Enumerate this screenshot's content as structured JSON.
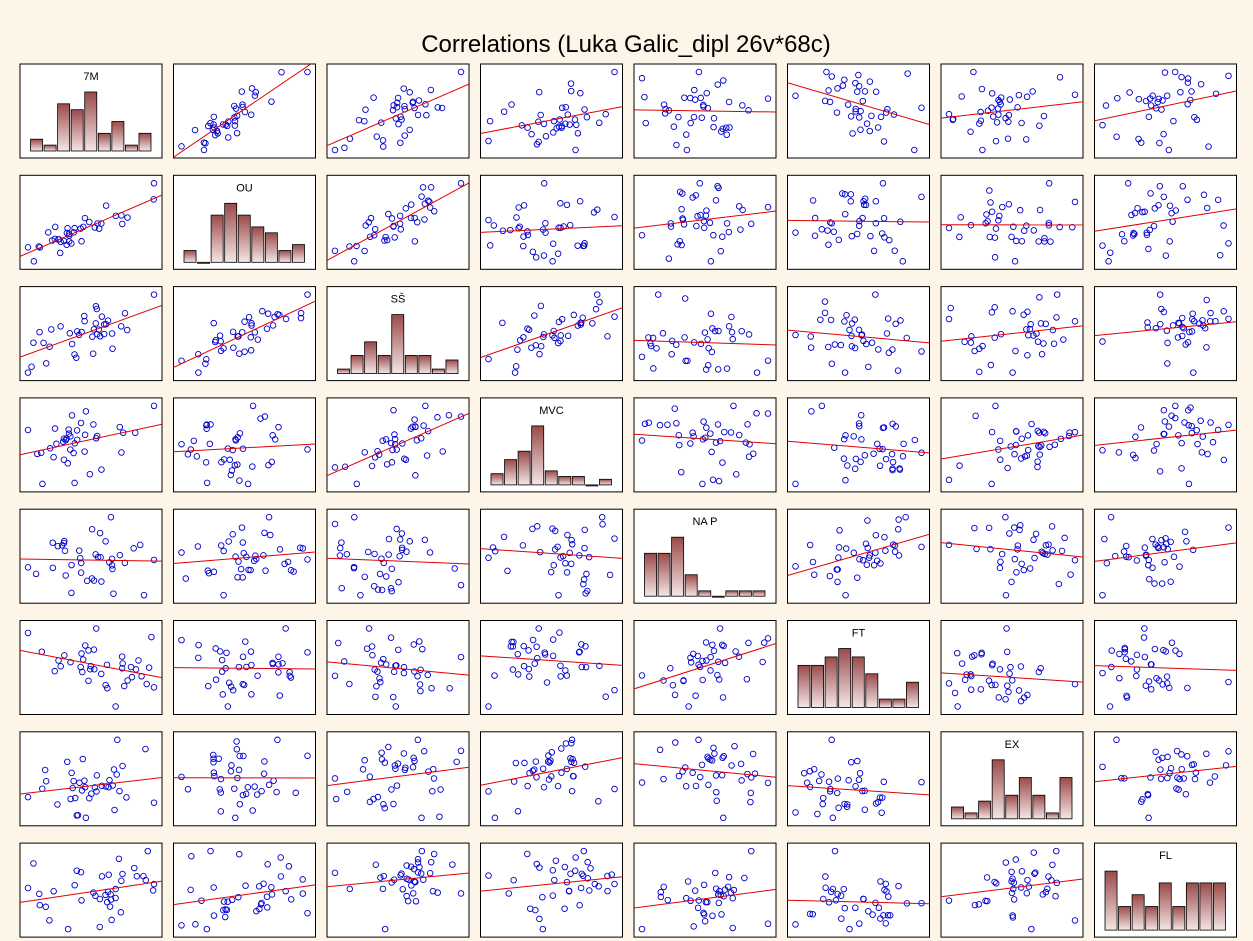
{
  "chart_data": {
    "type": "scatter",
    "title": "Correlations (Luka Galic_dipl 26v*68c)",
    "variables": [
      "7M",
      "OU",
      "SŠ",
      "MVC",
      "NA P",
      "FT",
      "EX",
      "FL"
    ],
    "grid": false,
    "legend": "none",
    "colors": {
      "background": "#fdf6e8",
      "panel": "#ffffff",
      "point": "#0000cc",
      "fit_line": "#e00000",
      "bar_dark": "#9a4a4a",
      "bar_light": "#f5e6e6",
      "frame": "#000000"
    },
    "histograms": [
      {
        "variable": "7M",
        "counts": [
          2,
          1,
          8,
          7,
          10,
          3,
          5,
          1,
          3
        ]
      },
      {
        "variable": "OU",
        "counts": [
          2,
          0,
          8,
          10,
          8,
          6,
          5,
          2,
          3
        ]
      },
      {
        "variable": "SŠ",
        "counts": [
          1,
          4,
          7,
          4,
          13,
          4,
          4,
          1,
          3
        ]
      },
      {
        "variable": "MVC",
        "counts": [
          4,
          9,
          12,
          21,
          5,
          3,
          3,
          0,
          2
        ]
      },
      {
        "variable": "NA P",
        "counts": [
          8,
          8,
          11,
          4,
          1,
          0,
          1,
          1,
          1
        ]
      },
      {
        "variable": "FT",
        "counts": [
          5,
          5,
          6,
          7,
          6,
          4,
          1,
          1,
          3
        ]
      },
      {
        "variable": "EX",
        "counts": [
          2,
          1,
          3,
          10,
          4,
          7,
          4,
          1,
          7
        ]
      },
      {
        "variable": "FL",
        "counts": [
          5,
          2,
          3,
          2,
          4,
          2,
          4,
          4,
          4
        ]
      }
    ],
    "correlations": [
      [
        1.0,
        0.85,
        0.72,
        0.28,
        -0.02,
        -0.08,
        0.06,
        0.07
      ],
      [
        0.85,
        1.0,
        0.7,
        0.3,
        -0.03,
        -0.07,
        0.1,
        0.02
      ],
      [
        0.72,
        0.7,
        1.0,
        0.35,
        -0.12,
        -0.1,
        0.07,
        0.08
      ],
      [
        0.28,
        0.3,
        0.35,
        1.0,
        -0.01,
        -0.01,
        0.2,
        0.1
      ],
      [
        -0.02,
        -0.03,
        -0.12,
        -0.01,
        1.0,
        0.62,
        -0.22,
        -0.18
      ],
      [
        -0.08,
        -0.07,
        -0.1,
        -0.01,
        0.62,
        1.0,
        -0.22,
        -0.1
      ],
      [
        0.06,
        0.1,
        0.07,
        0.2,
        -0.22,
        -0.22,
        1.0,
        0.2
      ],
      [
        0.07,
        0.02,
        0.08,
        0.1,
        -0.18,
        -0.1,
        0.2,
        1.0
      ]
    ]
  }
}
